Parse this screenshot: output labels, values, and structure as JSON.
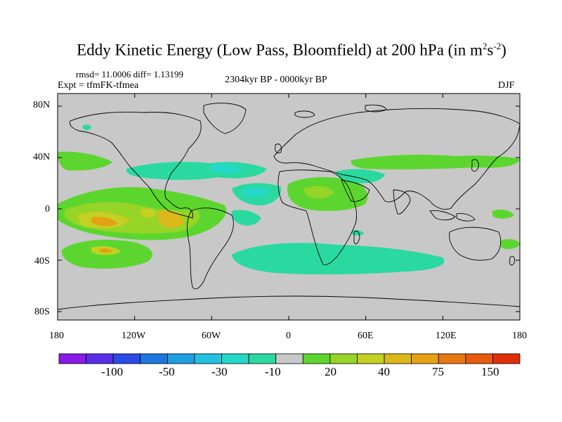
{
  "title": {
    "main": "Eddy Kinetic Energy (Low Pass, Bloomfield) at 200 hPa (in m",
    "sup1": "2",
    "mid": "s",
    "sup2": "-2",
    "close": ")"
  },
  "stats": "rmsd= 11.0006 diff= 1.13199",
  "experiment": "Expt = tfmFK-tfmea",
  "period": "2304kyr BP - 0000kyr BP",
  "season": "DJF",
  "lat_ticks": [
    "80N",
    "40N",
    "0",
    "40S",
    "80S"
  ],
  "lon_ticks": [
    "180",
    "120W",
    "60W",
    "0",
    "60E",
    "120E",
    "180"
  ],
  "colorbar": {
    "labels": [
      "-100",
      "-50",
      "-30",
      "-10",
      "20",
      "40",
      "75",
      "150"
    ],
    "colors": [
      "#8a1ae6",
      "#5a2ee6",
      "#2a4be6",
      "#1f78e0",
      "#1e9fe0",
      "#22c2e0",
      "#24d9c8",
      "#2ad9a0",
      "#c8c8c8",
      "#5cd62e",
      "#96d428",
      "#c4d022",
      "#dcb818",
      "#e6a014",
      "#e87810",
      "#e85a0e",
      "#e0300a"
    ]
  },
  "map_colors": {
    "background": "#c8c8c8",
    "coast": "#000000"
  }
}
